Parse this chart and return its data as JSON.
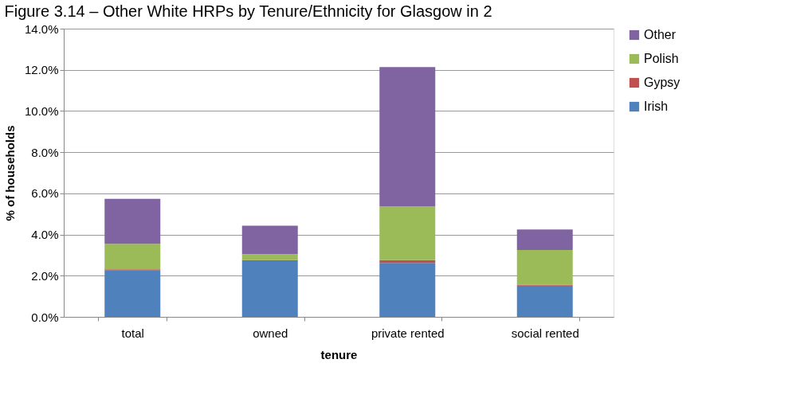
{
  "chart_data": {
    "type": "bar",
    "title": "Figure 3.14 – Other White HRPs by Tenure/Ethnicity for Glasgow in 2",
    "xlabel": "tenure",
    "ylabel": "% of households",
    "categories": [
      "total",
      "owned",
      "private rented",
      "social rented"
    ],
    "stacked": true,
    "series": [
      {
        "name": "Irish",
        "color": "#4f81bd",
        "values": [
          2.25,
          2.71,
          2.62,
          1.52
        ]
      },
      {
        "name": "Gypsy",
        "color": "#c0504d",
        "values": [
          0.06,
          0.05,
          0.14,
          0.05
        ]
      },
      {
        "name": "Polish",
        "color": "#9bbb59",
        "values": [
          1.24,
          0.29,
          2.62,
          1.68
        ]
      },
      {
        "name": "Other",
        "color": "#8064a2",
        "values": [
          2.18,
          1.38,
          6.75,
          0.99
        ]
      }
    ],
    "ylim": [
      0,
      14
    ],
    "yticks": [
      {
        "value": 0,
        "label": "0.0%"
      },
      {
        "value": 2,
        "label": "2.0%"
      },
      {
        "value": 4,
        "label": "4.0%"
      },
      {
        "value": 6,
        "label": "6.0%"
      },
      {
        "value": 8,
        "label": "8.0%"
      },
      {
        "value": 10,
        "label": "10.0%"
      },
      {
        "value": 12,
        "label": "12.0%"
      },
      {
        "value": 14,
        "label": "14.0%"
      }
    ],
    "grid": "y",
    "legend": "right"
  }
}
